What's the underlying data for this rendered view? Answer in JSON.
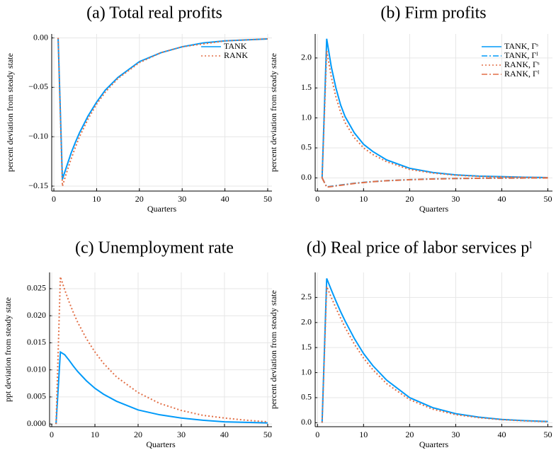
{
  "chart_data": [
    {
      "type": "line",
      "title": "(a) Total real profits",
      "xlabel": "Quarters",
      "ylabel": "percent deviation from steady state",
      "x": [
        1,
        2,
        3,
        4,
        5,
        6,
        8,
        10,
        12,
        15,
        20,
        25,
        30,
        35,
        40,
        45,
        50
      ],
      "series": [
        {
          "name": "TANK",
          "color": "#009af9",
          "style": "solid",
          "values": [
            0,
            -0.143,
            -0.13,
            -0.117,
            -0.106,
            -0.096,
            -0.079,
            -0.065,
            -0.053,
            -0.04,
            -0.024,
            -0.015,
            -0.009,
            -0.005,
            -0.003,
            -0.002,
            -0.001
          ]
        },
        {
          "name": "RANK",
          "color": "#e26f46",
          "style": "dot",
          "values": [
            0,
            -0.15,
            -0.136,
            -0.123,
            -0.111,
            -0.1,
            -0.082,
            -0.067,
            -0.055,
            -0.041,
            -0.025,
            -0.015,
            -0.009,
            -0.006,
            -0.003,
            -0.002,
            -0.001
          ]
        }
      ],
      "xlim": [
        -0.5,
        51
      ],
      "xticks": [
        0,
        10,
        20,
        30,
        40,
        50
      ],
      "ylim": [
        -0.155,
        0.004
      ],
      "yticks": [
        {
          "value": 0,
          "label": "0.00"
        },
        {
          "value": -0.05,
          "label": "−0.05"
        },
        {
          "value": -0.1,
          "label": "−0.10"
        },
        {
          "value": -0.15,
          "label": "−0.15"
        }
      ],
      "grid": true,
      "legend": "top-right"
    },
    {
      "type": "line",
      "title": "(b) Firm profits",
      "xlabel": "Quarters",
      "ylabel": "percent deviation from steady state",
      "x": [
        1,
        2,
        3,
        4,
        5,
        6,
        8,
        10,
        12,
        15,
        20,
        25,
        30,
        35,
        40,
        45,
        50
      ],
      "series": [
        {
          "name": "TANK, Γˢ",
          "color": "#009af9",
          "style": "solid",
          "values": [
            0,
            2.32,
            1.85,
            1.5,
            1.22,
            1.02,
            0.75,
            0.56,
            0.44,
            0.3,
            0.16,
            0.09,
            0.05,
            0.03,
            0.02,
            0.01,
            0.005
          ]
        },
        {
          "name": "TANK, Γᴵ",
          "color": "#009af9",
          "style": "dashdot",
          "values": [
            0,
            -0.15,
            -0.14,
            -0.13,
            -0.12,
            -0.11,
            -0.09,
            -0.075,
            -0.062,
            -0.047,
            -0.03,
            -0.018,
            -0.011,
            -0.007,
            -0.004,
            -0.002,
            -0.001
          ]
        },
        {
          "name": "RANK, Γˢ",
          "color": "#e26f46",
          "style": "dot",
          "values": [
            0,
            2.12,
            1.68,
            1.35,
            1.1,
            0.92,
            0.67,
            0.5,
            0.39,
            0.27,
            0.14,
            0.08,
            0.045,
            0.025,
            0.015,
            0.008,
            0.004
          ]
        },
        {
          "name": "RANK, Γᴵ",
          "color": "#e26f46",
          "style": "dashdot",
          "values": [
            0,
            -0.155,
            -0.145,
            -0.134,
            -0.124,
            -0.114,
            -0.093,
            -0.078,
            -0.064,
            -0.048,
            -0.031,
            -0.019,
            -0.011,
            -0.007,
            -0.004,
            -0.002,
            -0.001
          ]
        }
      ],
      "xlim": [
        -0.5,
        51
      ],
      "xticks": [
        0,
        10,
        20,
        30,
        40,
        50
      ],
      "ylim": [
        -0.22,
        2.4
      ],
      "yticks": [
        {
          "value": 0,
          "label": "0.0"
        },
        0.5,
        {
          "value": 1,
          "label": "1.0"
        },
        1.5,
        {
          "value": 2,
          "label": "2.0"
        }
      ],
      "grid": true,
      "legend": "top-right"
    },
    {
      "type": "line",
      "title": "(c) Unemployment rate",
      "xlabel": "Quarters",
      "ylabel": "ppt deviation from steady state",
      "x": [
        1,
        2,
        3,
        4,
        5,
        6,
        8,
        10,
        12,
        15,
        20,
        25,
        30,
        35,
        40,
        45,
        50
      ],
      "series": [
        {
          "name": "TANK",
          "color": "#009af9",
          "style": "solid",
          "values": [
            0,
            0.0133,
            0.0128,
            0.0118,
            0.0107,
            0.0097,
            0.008,
            0.0066,
            0.0055,
            0.0042,
            0.0026,
            0.0017,
            0.0011,
            0.0007,
            0.0004,
            0.0003,
            0.0002
          ]
        },
        {
          "name": "RANK",
          "color": "#e26f46",
          "style": "dot",
          "values": [
            0,
            0.0272,
            0.0248,
            0.0226,
            0.0206,
            0.0188,
            0.0158,
            0.0133,
            0.0112,
            0.0087,
            0.0058,
            0.0038,
            0.0025,
            0.0016,
            0.0011,
            0.0007,
            0.0004
          ]
        }
      ],
      "xlim": [
        -0.5,
        51
      ],
      "xticks": [
        0,
        10,
        20,
        30,
        40,
        50
      ],
      "ylim": [
        -0.0005,
        0.028
      ],
      "yticks": [
        {
          "value": 0,
          "label": "0.000"
        },
        0.005,
        {
          "value": 0.01,
          "label": "0.010"
        },
        0.015,
        {
          "value": 0.02,
          "label": "0.020"
        },
        0.025
      ],
      "grid": true
    },
    {
      "type": "line",
      "title": "(d) Real price of labor services pˡ",
      "xlabel": "Quarters",
      "ylabel": "percent deviation from steady state",
      "x": [
        1,
        2,
        3,
        4,
        5,
        6,
        8,
        10,
        12,
        15,
        20,
        25,
        30,
        35,
        40,
        45,
        50
      ],
      "series": [
        {
          "name": "TANK",
          "color": "#009af9",
          "style": "solid",
          "values": [
            0,
            2.88,
            2.65,
            2.43,
            2.22,
            2.03,
            1.68,
            1.38,
            1.14,
            0.85,
            0.5,
            0.3,
            0.18,
            0.11,
            0.065,
            0.04,
            0.025
          ]
        },
        {
          "name": "RANK",
          "color": "#e26f46",
          "style": "dot",
          "values": [
            0,
            2.72,
            2.5,
            2.29,
            2.09,
            1.9,
            1.57,
            1.29,
            1.06,
            0.78,
            0.46,
            0.27,
            0.16,
            0.1,
            0.06,
            0.035,
            0.02
          ]
        }
      ],
      "xlim": [
        -0.5,
        51
      ],
      "xticks": [
        0,
        10,
        20,
        30,
        40,
        50
      ],
      "ylim": [
        -0.08,
        3.0
      ],
      "yticks": [
        {
          "value": 0,
          "label": "0.0"
        },
        0.5,
        {
          "value": 1,
          "label": "1.0"
        },
        1.5,
        {
          "value": 2,
          "label": "2.0"
        },
        2.5
      ],
      "grid": true
    }
  ]
}
